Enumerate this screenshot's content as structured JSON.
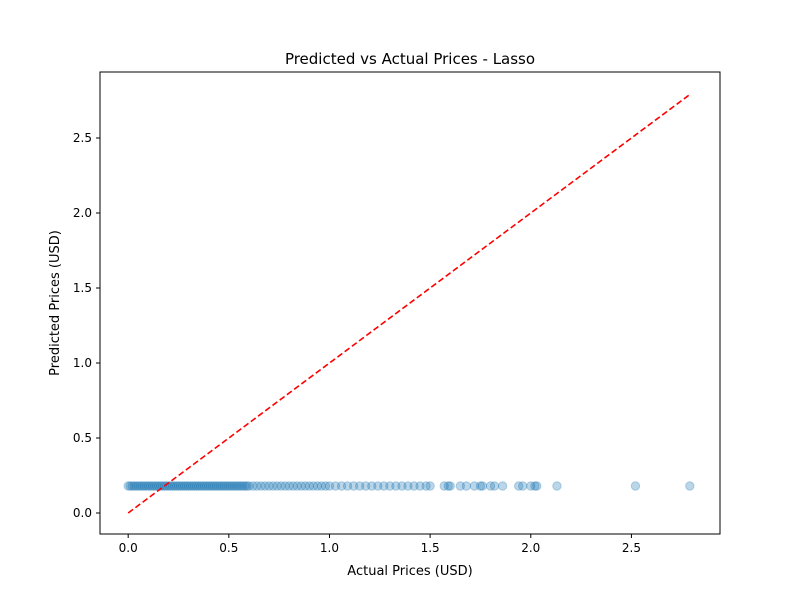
{
  "chart_data": {
    "type": "scatter",
    "title": "Predicted vs Actual Prices - Lasso",
    "xlabel": "Actual Prices (USD)",
    "ylabel": "Predicted Prices (USD)",
    "xlim": [
      -0.14,
      2.94
    ],
    "ylim": [
      -0.14,
      2.94
    ],
    "xticks": [
      0.0,
      0.5,
      1.0,
      1.5,
      2.0,
      2.5
    ],
    "yticks": [
      0.0,
      0.5,
      1.0,
      1.5,
      2.0,
      2.5
    ],
    "xtick_labels": [
      "0.0",
      "0.5",
      "1.0",
      "1.5",
      "2.0",
      "2.5"
    ],
    "ytick_labels": [
      "0.0",
      "0.5",
      "1.0",
      "1.5",
      "2.0",
      "2.5"
    ],
    "grid": false,
    "legend": false,
    "series": [
      {
        "color": "#1f77b4",
        "alpha": 0.3,
        "marker": "circle",
        "x": [
          0.0,
          0.01,
          0.02,
          0.03,
          0.04,
          0.05,
          0.06,
          0.07,
          0.08,
          0.09,
          0.1,
          0.11,
          0.12,
          0.13,
          0.14,
          0.15,
          0.16,
          0.17,
          0.18,
          0.19,
          0.2,
          0.21,
          0.22,
          0.23,
          0.24,
          0.25,
          0.26,
          0.27,
          0.28,
          0.29,
          0.3,
          0.31,
          0.32,
          0.33,
          0.34,
          0.35,
          0.36,
          0.37,
          0.38,
          0.39,
          0.4,
          0.41,
          0.42,
          0.43,
          0.44,
          0.45,
          0.46,
          0.47,
          0.48,
          0.49,
          0.5,
          0.51,
          0.52,
          0.53,
          0.54,
          0.55,
          0.56,
          0.57,
          0.58,
          0.59,
          0.6,
          0.62,
          0.64,
          0.66,
          0.68,
          0.7,
          0.72,
          0.74,
          0.76,
          0.78,
          0.8,
          0.82,
          0.84,
          0.86,
          0.88,
          0.9,
          0.92,
          0.94,
          0.96,
          0.98,
          1.0,
          1.03,
          1.06,
          1.09,
          1.12,
          1.15,
          1.18,
          1.21,
          1.24,
          1.27,
          1.3,
          1.33,
          1.36,
          1.39,
          1.42,
          1.45,
          1.48,
          1.5,
          1.57,
          1.59,
          1.6,
          1.65,
          1.68,
          1.72,
          1.75,
          1.76,
          1.8,
          1.82,
          1.86,
          1.94,
          1.96,
          2.0,
          2.02,
          2.03,
          2.13,
          2.52,
          2.79
        ],
        "y": [
          0.18,
          0.18,
          0.18,
          0.18,
          0.18,
          0.18,
          0.18,
          0.18,
          0.18,
          0.18,
          0.18,
          0.18,
          0.18,
          0.18,
          0.18,
          0.18,
          0.18,
          0.18,
          0.18,
          0.18,
          0.18,
          0.18,
          0.18,
          0.18,
          0.18,
          0.18,
          0.18,
          0.18,
          0.18,
          0.18,
          0.18,
          0.18,
          0.18,
          0.18,
          0.18,
          0.18,
          0.18,
          0.18,
          0.18,
          0.18,
          0.18,
          0.18,
          0.18,
          0.18,
          0.18,
          0.18,
          0.18,
          0.18,
          0.18,
          0.18,
          0.18,
          0.18,
          0.18,
          0.18,
          0.18,
          0.18,
          0.18,
          0.18,
          0.18,
          0.18,
          0.18,
          0.18,
          0.18,
          0.18,
          0.18,
          0.18,
          0.18,
          0.18,
          0.18,
          0.18,
          0.18,
          0.18,
          0.18,
          0.18,
          0.18,
          0.18,
          0.18,
          0.18,
          0.18,
          0.18,
          0.18,
          0.18,
          0.18,
          0.18,
          0.18,
          0.18,
          0.18,
          0.18,
          0.18,
          0.18,
          0.18,
          0.18,
          0.18,
          0.18,
          0.18,
          0.18,
          0.18,
          0.18,
          0.18,
          0.18,
          0.18,
          0.18,
          0.18,
          0.18,
          0.18,
          0.18,
          0.18,
          0.18,
          0.18,
          0.18,
          0.18,
          0.18,
          0.18,
          0.18,
          0.18,
          0.18,
          0.18
        ]
      }
    ],
    "reference_line": {
      "x": [
        0.0,
        2.79
      ],
      "y": [
        0.0,
        2.79
      ],
      "color": "#ff0000",
      "style": "dashed"
    }
  }
}
